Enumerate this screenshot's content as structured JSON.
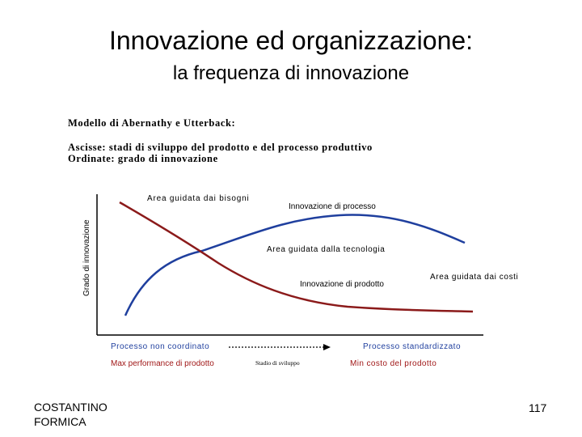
{
  "slide": {
    "title": "Innovazione ed organizzazione:",
    "subtitle": "la frequenza di innovazione",
    "author_line1": "COSTANTINO",
    "author_line2": "FORMICA",
    "page_number": "117"
  },
  "model": {
    "heading": "Modello di Abernathy e Utterback:",
    "x_axis_desc": "Ascisse: stadi di sviluppo del prodotto e del processo produttivo",
    "y_axis_desc": "Ordinate: grado di innovazione"
  },
  "diagram": {
    "y_label": "Grado di innovazione",
    "x_center_label": "Stadio di sviluppo",
    "labels": {
      "needs_area": "Area guidata dai bisogni",
      "process_innovation": "Innovazione di processo",
      "tech_area": "Area guidata dalla tecnologia",
      "product_innovation": "Innovazione di prodotto",
      "cost_area": "Area guidata dai costi"
    },
    "bottom": {
      "left_blue": "Processo non coordinato",
      "right_blue": "Processo standardizzato",
      "left_red": "Max performance di prodotto",
      "right_red": "Min costo del prodotto"
    },
    "colors": {
      "process_curve": "#1f3f9e",
      "product_curve": "#8b1a1a",
      "blue_text": "#1f3f9e",
      "red_text": "#a01818"
    }
  }
}
